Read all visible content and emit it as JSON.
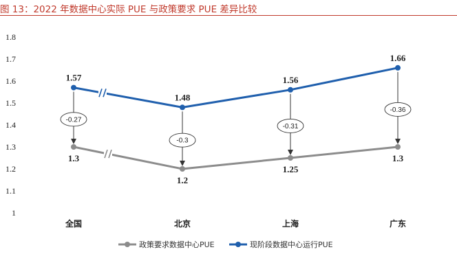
{
  "header": {
    "title": "图 13：2022 年数据中心实际 PUE 与政策要求 PUE 差异比较"
  },
  "chart_data": {
    "type": "line",
    "categories": [
      "全国",
      "北京",
      "上海",
      "广东"
    ],
    "ylim": [
      1,
      1.8
    ],
    "yticks": [
      "1",
      "1.1",
      "1.2",
      "1.3",
      "1.4",
      "1.5",
      "1.6",
      "1.7",
      "1.8"
    ],
    "grid": false,
    "legend_position": "bottom",
    "series": [
      {
        "name": "政策要求数据中心PUE",
        "values": [
          1.3,
          1.2,
          1.25,
          1.3
        ],
        "labels": [
          "1.3",
          "1.2",
          "1.25",
          "1.3"
        ],
        "color": "#8c8c8c"
      },
      {
        "name": "现阶段数据中心运行PUE",
        "values": [
          1.57,
          1.48,
          1.56,
          1.66
        ],
        "labels": [
          "1.57",
          "1.48",
          "1.56",
          "1.66"
        ],
        "color": "#1f5fad"
      }
    ],
    "differences": [
      "-0.27",
      "-0.3",
      "-0.31",
      "-0.36"
    ]
  }
}
